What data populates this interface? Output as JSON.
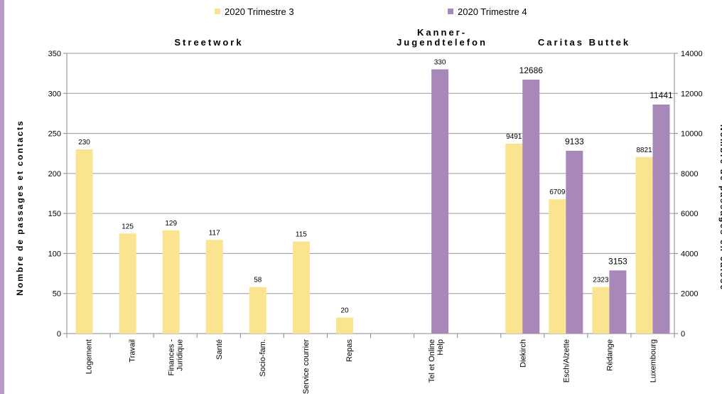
{
  "chart_data": {
    "type": "bar",
    "legend": {
      "placement": "top",
      "items": [
        {
          "label": "2020 Trimestre 3",
          "color": "#fbe48f"
        },
        {
          "label": "2020 Trimestre 4",
          "color": "#a888b8"
        }
      ]
    },
    "groups": [
      {
        "label": "Streetwork",
        "lines": [
          "Streetwork"
        ]
      },
      {
        "label": "Kanner-Jugendtelefon",
        "lines": [
          "Kanner-",
          "Jugendtelefon"
        ]
      },
      {
        "label": "Caritas Buttek",
        "lines": [
          "Caritas Buttek"
        ]
      }
    ],
    "left_axis": {
      "label": "Nombre de passages et contacts",
      "min": 0,
      "max": 350,
      "step": 50
    },
    "right_axis": {
      "label": "Nombre de passages en caisse",
      "min": 0,
      "max": 14000,
      "step": 2000
    },
    "categories": [
      {
        "label": "Logement",
        "lines": [
          "Logement"
        ],
        "axis": "left",
        "q3": 230,
        "q4": null
      },
      {
        "label": "Travail",
        "lines": [
          "Travail"
        ],
        "axis": "left",
        "q3": 125,
        "q4": null
      },
      {
        "label": "Finances - Juridique",
        "lines": [
          "Finances -",
          "Juridique"
        ],
        "axis": "left",
        "q3": 129,
        "q4": null
      },
      {
        "label": "Santé",
        "lines": [
          "Santé"
        ],
        "axis": "left",
        "q3": 117,
        "q4": null
      },
      {
        "label": "Socio-fam.",
        "lines": [
          "Socio-fam."
        ],
        "axis": "left",
        "q3": 58,
        "q4": null
      },
      {
        "label": "Service courrier",
        "lines": [
          "Service courrier"
        ],
        "axis": "left",
        "q3": 115,
        "q4": null
      },
      {
        "label": "Repas",
        "lines": [
          "Repas"
        ],
        "axis": "left",
        "q3": 20,
        "q4": null
      },
      {
        "label": "",
        "lines": [],
        "axis": "left",
        "q3": null,
        "q4": null
      },
      {
        "label": "Tel et Online Help",
        "lines": [
          "Tel et Online",
          "Help"
        ],
        "axis": "left",
        "q3": null,
        "q4": 330
      },
      {
        "label": "",
        "lines": [],
        "axis": "left",
        "q3": null,
        "q4": null
      },
      {
        "label": "Diekirch",
        "lines": [
          "Diekirch"
        ],
        "axis": "right",
        "q3": 9491,
        "q4": 12686
      },
      {
        "label": "Esch/Alzette",
        "lines": [
          "Esch/Alzette"
        ],
        "axis": "right",
        "q3": 6709,
        "q4": 9133
      },
      {
        "label": "Rédange",
        "lines": [
          "Rédange"
        ],
        "axis": "right",
        "q3": 2323,
        "q4": 3153
      },
      {
        "label": "Luxembourg",
        "lines": [
          "Luxembourg"
        ],
        "axis": "right",
        "q3": 8821,
        "q4": 11441
      }
    ]
  }
}
